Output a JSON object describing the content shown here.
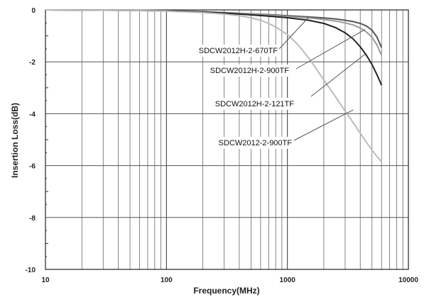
{
  "chart_data": {
    "type": "line",
    "xlabel": "Frequency(MHz)",
    "ylabel": "Insertion Loss(dB)",
    "x_scale": "log",
    "xlim": [
      10,
      10000
    ],
    "ylim": [
      -10,
      0
    ],
    "x_ticks": [
      10,
      100,
      1000,
      10000
    ],
    "x_tick_labels": [
      "10",
      "100",
      "1000",
      "10000"
    ],
    "y_ticks": [
      0,
      -2,
      -4,
      -6,
      -8,
      -10
    ],
    "y_tick_labels": [
      "0",
      "-2",
      "-4",
      "-6",
      "-8",
      "-10"
    ],
    "grid": true,
    "series": [
      {
        "name": "SDCW2012H-2-670TF",
        "color": "#555555",
        "x": [
          10,
          50,
          100,
          200,
          300,
          500,
          700,
          1000,
          1500,
          2000,
          2500,
          3000,
          3500,
          4000,
          4500,
          5000,
          5500,
          6000
        ],
        "y": [
          0,
          -0.01,
          -0.03,
          -0.07,
          -0.1,
          -0.15,
          -0.18,
          -0.22,
          -0.27,
          -0.31,
          -0.35,
          -0.4,
          -0.45,
          -0.52,
          -0.62,
          -0.78,
          -1.05,
          -1.45
        ]
      },
      {
        "name": "SDCW2012H-2-900TF",
        "color": "#999999",
        "x": [
          10,
          50,
          100,
          200,
          300,
          500,
          700,
          1000,
          1500,
          2000,
          2500,
          3000,
          3500,
          4000,
          4500,
          5000,
          5500,
          6000
        ],
        "y": [
          0,
          -0.01,
          -0.03,
          -0.07,
          -0.1,
          -0.16,
          -0.2,
          -0.25,
          -0.31,
          -0.37,
          -0.43,
          -0.5,
          -0.58,
          -0.7,
          -0.85,
          -1.05,
          -1.35,
          -1.75
        ]
      },
      {
        "name": "SDCW2012H-2-121TF",
        "color": "#222222",
        "x": [
          10,
          50,
          100,
          200,
          300,
          500,
          700,
          1000,
          1500,
          2000,
          2500,
          3000,
          3500,
          4000,
          4500,
          5000,
          5500,
          6000
        ],
        "y": [
          0,
          -0.02,
          -0.04,
          -0.08,
          -0.12,
          -0.19,
          -0.24,
          -0.3,
          -0.4,
          -0.52,
          -0.68,
          -0.88,
          -1.12,
          -1.42,
          -1.75,
          -2.1,
          -2.5,
          -2.9
        ]
      },
      {
        "name": "SDCW2012-2-900TF",
        "color": "#bbbbbb",
        "x": [
          10,
          50,
          100,
          200,
          300,
          400,
          500,
          600,
          700,
          800,
          1000,
          1200,
          1500,
          2000,
          2500,
          3000,
          3500,
          4000,
          4500,
          5000,
          5500,
          6000
        ],
        "y": [
          0,
          -0.02,
          -0.05,
          -0.1,
          -0.16,
          -0.22,
          -0.3,
          -0.4,
          -0.52,
          -0.66,
          -0.95,
          -1.3,
          -1.85,
          -2.7,
          -3.35,
          -3.9,
          -4.35,
          -4.75,
          -5.1,
          -5.4,
          -5.65,
          -5.85
        ]
      }
    ],
    "annotations": [
      {
        "text": "SDCW2012H-2-670TF",
        "series": "SDCW2012H-2-670TF"
      },
      {
        "text": "SDCW2012H-2-900TF",
        "series": "SDCW2012H-2-900TF"
      },
      {
        "text": "SDCW2012H-2-121TF",
        "series": "SDCW2012H-2-121TF"
      },
      {
        "text": "SDCW2012-2-900TF",
        "series": "SDCW2012-2-900TF"
      }
    ]
  }
}
